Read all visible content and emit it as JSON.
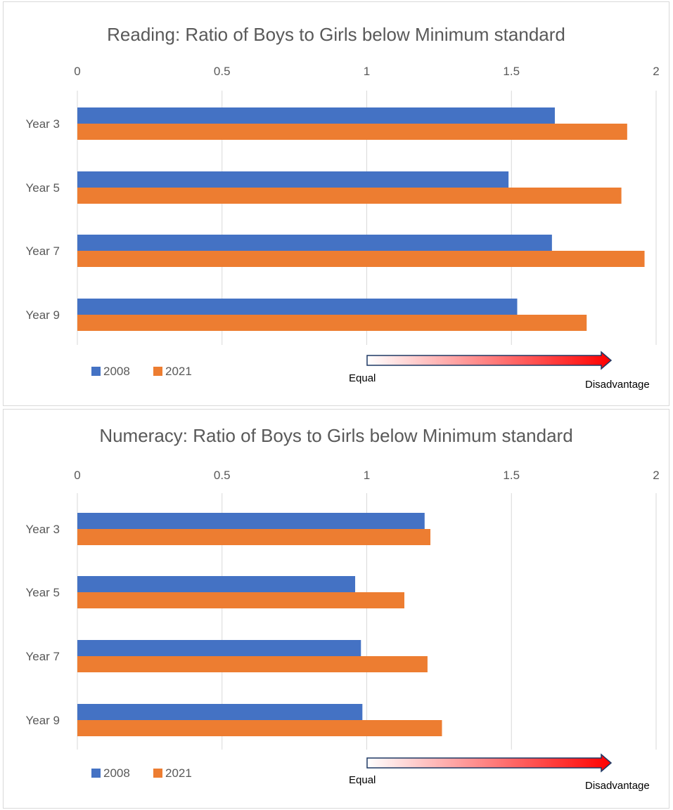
{
  "colors": {
    "series_2008": "#4472C4",
    "series_2021": "#ED7D31",
    "grid": "#d9d9d9",
    "text": "#595959"
  },
  "chart_data": [
    {
      "type": "bar",
      "orientation": "horizontal",
      "title": "Reading: Ratio of Boys to Girls below Minimum standard",
      "xlim": [
        0,
        2
      ],
      "x_ticks": [
        "0",
        "0.5",
        "1",
        "1.5",
        "2"
      ],
      "x_axis_position": "top",
      "grid": true,
      "legend_position": "bottom-left",
      "categories": [
        "Year 3",
        "Year 5",
        "Year 7",
        "Year 9"
      ],
      "series": [
        {
          "name": "2008",
          "values": [
            1.65,
            1.49,
            1.64,
            1.52
          ]
        },
        {
          "name": "2021",
          "values": [
            1.9,
            1.88,
            1.96,
            1.76
          ]
        }
      ],
      "annotation": {
        "start_label": "Equal",
        "end_label": "Disadvantage"
      }
    },
    {
      "type": "bar",
      "orientation": "horizontal",
      "title": "Numeracy: Ratio of Boys to Girls below Minimum standard",
      "xlim": [
        0,
        2
      ],
      "x_ticks": [
        "0",
        "0.5",
        "1",
        "1.5",
        "2"
      ],
      "x_axis_position": "top",
      "grid": true,
      "legend_position": "bottom-left",
      "categories": [
        "Year 3",
        "Year 5",
        "Year 7",
        "Year 9"
      ],
      "series": [
        {
          "name": "2008",
          "values": [
            1.2,
            0.96,
            0.98,
            0.985
          ]
        },
        {
          "name": "2021",
          "values": [
            1.22,
            1.13,
            1.21,
            1.26
          ]
        }
      ],
      "annotation": {
        "start_label": "Equal",
        "end_label": "Disadvantage"
      }
    }
  ]
}
